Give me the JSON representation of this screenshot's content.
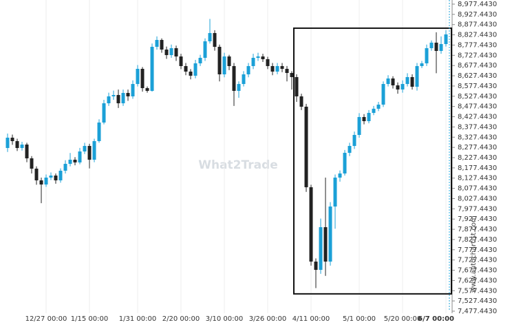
{
  "chart_data": {
    "type": "candlestick",
    "watermark": "What2Trade",
    "source": "www.autochartist.com",
    "up_color": "#1ba0d7",
    "down_color": "#222222",
    "categories": [
      null,
      null,
      null,
      null,
      null,
      null,
      null,
      null,
      "12/27 00:00",
      null,
      null,
      null,
      null,
      null,
      null,
      null,
      null,
      "1/15 00:00",
      null,
      null,
      null,
      null,
      null,
      null,
      null,
      null,
      null,
      "1/31 00:00",
      null,
      null,
      null,
      null,
      null,
      null,
      null,
      null,
      "2/20 00:00",
      null,
      null,
      null,
      null,
      null,
      null,
      null,
      null,
      "3/10 00:00",
      null,
      null,
      null,
      null,
      null,
      null,
      null,
      null,
      "3/26 00:00",
      null,
      null,
      null,
      null,
      null,
      null,
      null,
      null,
      "4/11 00:00",
      null,
      null,
      null,
      null,
      null,
      null,
      null,
      null,
      null,
      "5/1 00:00",
      null,
      null,
      null,
      null,
      null,
      null,
      null,
      null,
      "5/20 00:00",
      null,
      null,
      null,
      null,
      null,
      null,
      null,
      null,
      "6/7 00:00"
    ],
    "open": [
      8274.6,
      8325.0,
      8308.2,
      8274.6,
      8291.4,
      8224.1,
      8173.7,
      8116.5,
      8096.3,
      8130.0,
      8140.0,
      8116.5,
      8163.6,
      8197.2,
      8217.4,
      8204.1,
      8257.7,
      8284.6,
      8217.4,
      8308.2,
      8399.0,
      8493.1,
      8526.8,
      8533.5,
      8493.1,
      8543.6,
      8526.8,
      8587.3,
      8661.3,
      8567.1,
      8553.7,
      8768.9,
      8802.5,
      8755.5,
      8728.5,
      8762.2,
      8721.8,
      8674.8,
      8647.8,
      8627.7,
      8688.2,
      8715.1,
      8795.8,
      8836.2,
      8768.9,
      8634.4,
      8721.8,
      8674.8,
      8553.7,
      8587.3,
      8634.4,
      8674.8,
      8715.1,
      8721.8,
      8708.4,
      8674.8,
      8647.8,
      8674.8,
      8661.3,
      8641.1,
      8621.0,
      8526.8,
      8476.3,
      8082.9,
      7719.7,
      7679.3,
      7887.8,
      7719.7,
      7988.7,
      8130.0,
      8150.1,
      8251.0,
      8284.6,
      8338.4,
      8425.9,
      8405.7,
      8446.1,
      8466.4,
      8486.5,
      8587.3,
      8614.2,
      8580.6,
      8560.4,
      8587.3,
      8621.0,
      8573.9,
      8674.8,
      8688.2,
      8762.2,
      8789.2,
      8748.8,
      8782.4
    ],
    "high": [
      8345,
      8340,
      8320,
      8305,
      8300,
      8235,
      8185,
      8130,
      8145,
      8155,
      8150,
      8175,
      8215,
      8250,
      8230,
      8275,
      8300,
      8295,
      8320,
      8415,
      8510,
      8545,
      8555,
      8560,
      8560,
      8560,
      8605,
      8680,
      8670,
      8575,
      8785,
      8820,
      8810,
      8770,
      8780,
      8775,
      8735,
      8690,
      8660,
      8705,
      8730,
      8810,
      8905,
      8850,
      8780,
      8740,
      8730,
      8690,
      8600,
      8650,
      8690,
      8735,
      8740,
      8735,
      8720,
      8690,
      8690,
      8690,
      8675,
      8650,
      8635,
      8540,
      8490,
      8095,
      7735,
      7930,
      8130,
      8010,
      8145,
      8165,
      8265,
      8300,
      8355,
      8445,
      8440,
      8460,
      8480,
      8500,
      8600,
      8630,
      8625,
      8595,
      8605,
      8640,
      8635,
      8690,
      8700,
      8780,
      8800,
      8840,
      8820,
      8850
    ],
    "low": [
      8255,
      8290,
      8260,
      8262,
      8205,
      8150,
      8095,
      8005,
      8085,
      8118,
      8100,
      8105,
      8150,
      8185,
      8190,
      8195,
      8245,
      8175,
      8205,
      8300,
      8390,
      8480,
      8510,
      8470,
      8480,
      8505,
      8515,
      8575,
      8550,
      8545,
      8550,
      8755,
      8740,
      8710,
      8715,
      8700,
      8660,
      8630,
      8610,
      8615,
      8675,
      8700,
      8785,
      8750,
      8600,
      8620,
      8655,
      8480,
      8520,
      8575,
      8620,
      8660,
      8700,
      8695,
      8660,
      8630,
      8635,
      8645,
      8600,
      8560,
      8500,
      8460,
      8060,
      7700,
      7590,
      7660,
      7650,
      7700,
      7880,
      8110,
      8140,
      8235,
      8270,
      8325,
      8390,
      8395,
      8435,
      8455,
      8475,
      8575,
      8565,
      8540,
      8545,
      8575,
      8560,
      8555,
      8665,
      8675,
      8750,
      8640,
      8735,
      8770
    ],
    "close": [
      8325.0,
      8308.2,
      8274.6,
      8291.4,
      8224.1,
      8173.7,
      8116.5,
      8096.3,
      8130.0,
      8140.0,
      8116.5,
      8163.6,
      8197.2,
      8217.4,
      8204.1,
      8257.7,
      8284.6,
      8217.4,
      8308.2,
      8399.0,
      8493.1,
      8526.8,
      8533.5,
      8493.1,
      8543.6,
      8526.8,
      8587.3,
      8661.3,
      8567.1,
      8553.7,
      8768.9,
      8802.5,
      8755.5,
      8728.5,
      8762.2,
      8721.8,
      8674.8,
      8647.8,
      8627.7,
      8688.2,
      8715.1,
      8795.8,
      8836.2,
      8768.9,
      8634.4,
      8721.8,
      8674.8,
      8553.7,
      8587.3,
      8634.4,
      8674.8,
      8715.1,
      8721.8,
      8708.4,
      8674.8,
      8647.8,
      8674.8,
      8661.3,
      8641.1,
      8621.0,
      8526.8,
      8476.3,
      8082.9,
      7719.7,
      7679.3,
      7887.8,
      7719.7,
      7988.7,
      8130.0,
      8150.1,
      8251.0,
      8284.6,
      8338.4,
      8425.9,
      8405.7,
      8446.1,
      8466.4,
      8486.5,
      8587.3,
      8614.2,
      8580.6,
      8560.4,
      8587.3,
      8621.0,
      8573.9,
      8674.8,
      8688.2,
      8762.2,
      8789.2,
      8748.8,
      8782.4,
      8829.6
    ],
    "pattern": {
      "high": 8860,
      "low": 7562
    },
    "ylim": [
      7477.443,
      8977.443
    ],
    "yticks": [
      {
        "value": 7477.443,
        "label": "7,477.4430"
      },
      {
        "value": 7527.443,
        "label": "7,527.4430"
      },
      {
        "value": 7577.443,
        "label": "7,577.4430"
      },
      {
        "value": 7627.443,
        "label": "7,627.4430"
      },
      {
        "value": 7677.443,
        "label": "7,677.4430"
      },
      {
        "value": 7727.443,
        "label": "7,727.4430"
      },
      {
        "value": 7777.443,
        "label": "7,777.4430"
      },
      {
        "value": 7827.443,
        "label": "7,827.4430"
      },
      {
        "value": 7877.443,
        "label": "7,877.4430"
      },
      {
        "value": 7927.443,
        "label": "7,927.4430"
      },
      {
        "value": 7977.443,
        "label": "7,977.4430"
      },
      {
        "value": 8027.443,
        "label": "8,027.4430"
      },
      {
        "value": 8077.443,
        "label": "8,077.4430"
      },
      {
        "value": 8127.443,
        "label": "8,127.4430"
      },
      {
        "value": 8177.443,
        "label": "8,177.4430"
      },
      {
        "value": 8227.443,
        "label": "8,227.4430"
      },
      {
        "value": 8277.443,
        "label": "8,277.4430"
      },
      {
        "value": 8327.443,
        "label": "8,327.4430"
      },
      {
        "value": 8377.443,
        "label": "8,377.4430"
      },
      {
        "value": 8427.443,
        "label": "8,427.4430"
      },
      {
        "value": 8477.443,
        "label": "8,477.4430"
      },
      {
        "value": 8527.443,
        "label": "8,527.4430"
      },
      {
        "value": 8577.443,
        "label": "8,577.4430"
      },
      {
        "value": 8627.443,
        "label": "8,627.4430"
      },
      {
        "value": 8677.443,
        "label": "8,677.4430"
      },
      {
        "value": 8727.443,
        "label": "8,727.4430"
      },
      {
        "value": 8777.443,
        "label": "8,777.4430"
      },
      {
        "value": 8827.443,
        "label": "8,827.4430"
      },
      {
        "value": 8877.443,
        "label": "8,877.4430"
      },
      {
        "value": 8927.443,
        "label": "8,927.4430"
      },
      {
        "value": 8977.443,
        "label": "8,977.4430"
      }
    ],
    "grid": true
  }
}
